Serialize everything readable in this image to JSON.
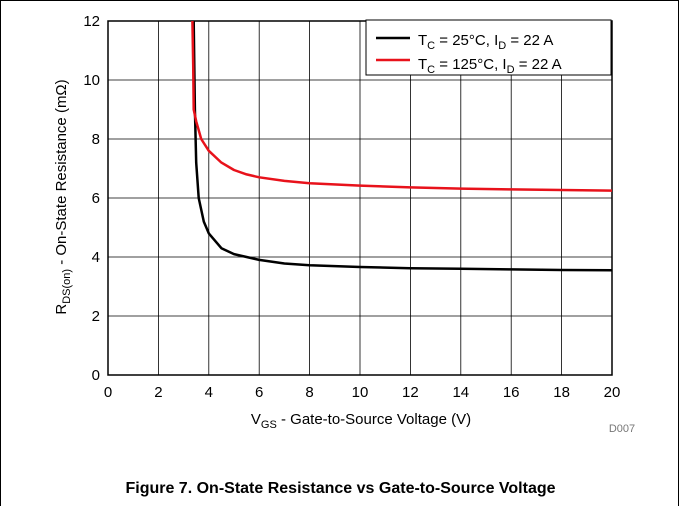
{
  "caption": "Figure 7. On-State Resistance vs Gate-to-Source Voltage",
  "doc_id": "D007",
  "chart_data": {
    "type": "line",
    "xlabel": {
      "main": "V",
      "sub": "GS",
      "rest": " - Gate-to-Source Voltage (V)"
    },
    "ylabel": {
      "main": "R",
      "sub": "DS(on)",
      "rest": " - On-State Resistance (mΩ)"
    },
    "xlim": [
      0,
      20
    ],
    "ylim": [
      0,
      12
    ],
    "xticks": [
      0,
      2,
      4,
      6,
      8,
      10,
      12,
      14,
      16,
      18,
      20
    ],
    "yticks": [
      0,
      2,
      4,
      6,
      8,
      10,
      12
    ],
    "grid": true,
    "legend_position": "top-right",
    "series": [
      {
        "legend": {
          "a": "T",
          "a_sub": "C",
          "b": " = 25°C, I",
          "b_sub": "D",
          "c": " = 22 A"
        },
        "color": "#000000",
        "x": [
          3.4,
          3.45,
          3.5,
          3.6,
          3.8,
          4.0,
          4.5,
          5.0,
          5.5,
          6.0,
          7.0,
          8.0,
          10.0,
          12.0,
          14.0,
          16.0,
          18.0,
          20.0
        ],
        "y": [
          12.0,
          9.0,
          7.2,
          6.0,
          5.2,
          4.8,
          4.3,
          4.1,
          4.0,
          3.9,
          3.78,
          3.72,
          3.66,
          3.62,
          3.6,
          3.58,
          3.56,
          3.55
        ]
      },
      {
        "legend": {
          "a": "T",
          "a_sub": "C",
          "b": " = 125°C, I",
          "b_sub": "D",
          "c": " = 22 A"
        },
        "color": "#e8121b",
        "x": [
          3.35,
          3.38,
          3.4,
          3.5,
          3.7,
          4.0,
          4.5,
          5.0,
          5.5,
          6.0,
          7.0,
          8.0,
          10.0,
          12.0,
          14.0,
          16.0,
          18.0,
          20.0
        ],
        "y": [
          12.0,
          10.5,
          9.0,
          8.6,
          8.0,
          7.6,
          7.2,
          6.95,
          6.8,
          6.7,
          6.58,
          6.5,
          6.42,
          6.36,
          6.32,
          6.29,
          6.27,
          6.25
        ]
      }
    ]
  }
}
